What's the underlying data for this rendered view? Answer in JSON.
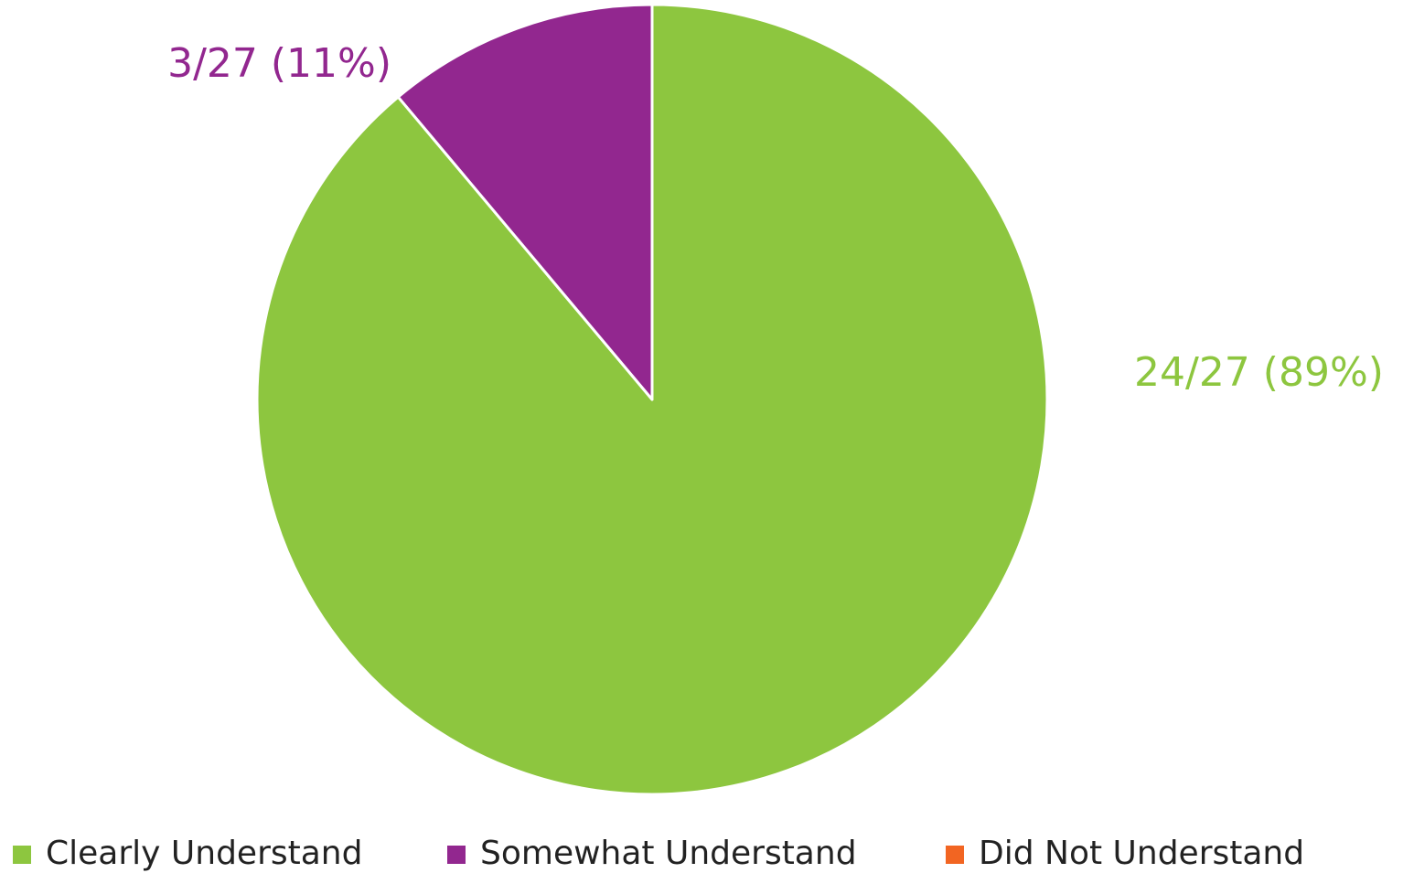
{
  "chart_data": {
    "type": "pie",
    "categories": [
      "Clearly Understand",
      "Somewhat Understand",
      "Did Not Understand"
    ],
    "values": [
      24,
      3,
      0
    ],
    "value_labels": [
      "24/27 (89%)",
      "3/27 (11%)",
      null
    ],
    "colors": [
      "#8dc63f",
      "#92278f",
      "#f26522"
    ],
    "legend": "bottom"
  }
}
